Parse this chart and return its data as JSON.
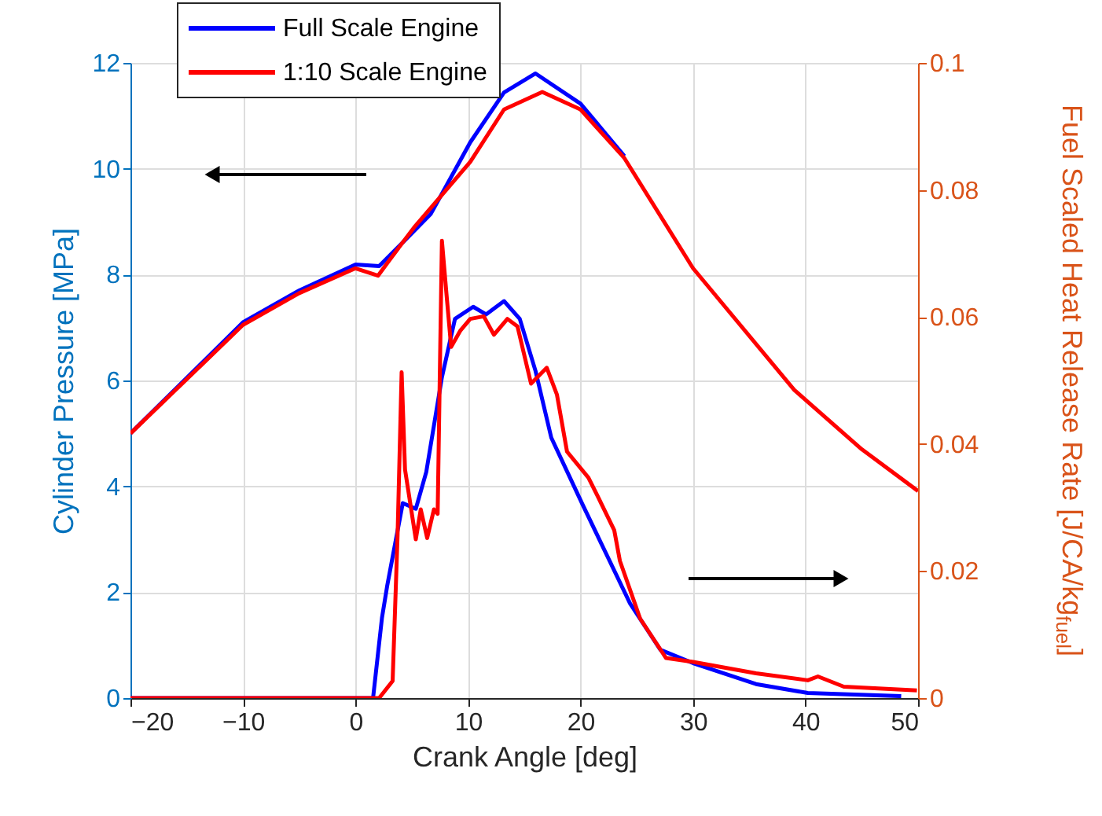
{
  "chart_data": {
    "type": "line",
    "xlabel": "Crank Angle [deg]",
    "ylabel": "Cylinder Pressure [MPa]",
    "y2label": "Fuel Scaled Heat Release Rate [J/CA/kg$_{fuel}$]",
    "xlim": [
      -20,
      50
    ],
    "xticks": [
      -20,
      -10,
      0,
      10,
      20,
      30,
      40,
      50
    ],
    "ylim": [
      0,
      12
    ],
    "yticks": [
      0,
      2,
      4,
      6,
      8,
      10,
      12
    ],
    "y2lim": [
      0,
      0.1
    ],
    "y2ticks": [
      0,
      0.02,
      0.04,
      0.06,
      0.08,
      0.1
    ],
    "grid": true,
    "legend": "top left",
    "line_style": "solid",
    "marker": "none",
    "series": [
      {
        "name": "Full Scale Engine",
        "color": "#0000ff",
        "x": [
          -20,
          -10,
          -5,
          0,
          2.1,
          4.3,
          6.7,
          10.2,
          13.2,
          16,
          20,
          23.9
        ],
        "values": [
          5.0,
          7.1,
          7.7,
          8.19,
          8.16,
          8.63,
          9.15,
          10.5,
          11.44,
          11.8,
          11.23,
          10.24
        ]
      },
      {
        "name": "1:10 Scale Engine",
        "color": "#ff0000",
        "x": [
          -20,
          -10,
          -5,
          0,
          2,
          3,
          5.2,
          10.2,
          13.2,
          16.6,
          20,
          23.9,
          30,
          39,
          45,
          50
        ],
        "values": [
          5.0,
          7.05,
          7.65,
          8.12,
          7.98,
          8.27,
          8.89,
          10.13,
          11.12,
          11.45,
          11.12,
          10.2,
          8.12,
          5.82,
          4.7,
          3.91
        ]
      },
      {
        "color": "#0000ff",
        "axis": "y2",
        "x": [
          -20,
          1.56,
          2.35,
          2.81,
          4.2,
          5.36,
          6.29,
          7.68,
          8.84,
          10.46,
          11.6,
          13.2,
          14.6,
          16,
          17.4,
          20.2,
          24.4,
          27.1,
          30,
          35.6,
          40.2,
          48.5
        ],
        "values": [
          0,
          0,
          0.0126,
          0.0176,
          0.0307,
          0.0298,
          0.0356,
          0.0505,
          0.0597,
          0.0616,
          0.0604,
          0.0625,
          0.0597,
          0.0515,
          0.041,
          0.0304,
          0.0149,
          0.0076,
          0.0055,
          0.0022,
          0.0008,
          0.0003
        ]
      },
      {
        "color": "#ff0000",
        "axis": "y2",
        "x": [
          -20,
          2.1,
          3.3,
          3.74,
          4.1,
          4.4,
          5.36,
          5.8,
          6.37,
          6.97,
          7.3,
          7.68,
          8.14,
          8.5,
          9.3,
          10.2,
          11.4,
          12.3,
          13.5,
          14.4,
          15.6,
          17,
          17.9,
          18.8,
          20.7,
          21.6,
          23,
          23.5,
          25.3,
          27.6,
          30,
          35.6,
          40.2,
          41.1,
          43.4,
          49.9
        ],
        "values": [
          0,
          0,
          0.0027,
          0.0257,
          0.0513,
          0.036,
          0.025,
          0.0297,
          0.0252,
          0.0297,
          0.029,
          0.072,
          0.0625,
          0.0553,
          0.0578,
          0.0597,
          0.0601,
          0.0572,
          0.0597,
          0.0585,
          0.0495,
          0.052,
          0.0478,
          0.0388,
          0.0347,
          0.0315,
          0.0264,
          0.0216,
          0.0125,
          0.0063,
          0.0057,
          0.0039,
          0.0028,
          0.0034,
          0.0018,
          0.0012
        ]
      }
    ]
  }
}
